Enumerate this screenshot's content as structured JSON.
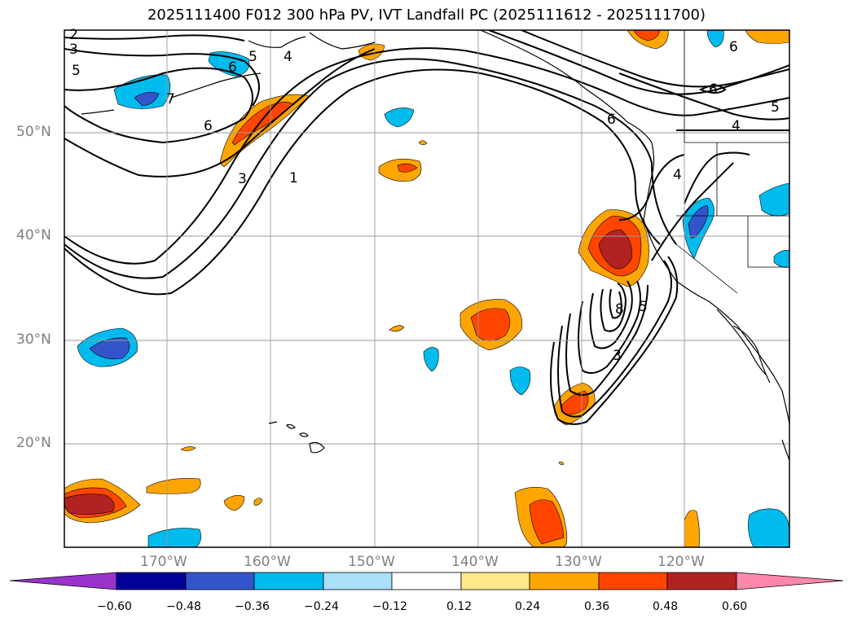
{
  "title": "2025111400 F012 300 hPa PV, IVT Landfall PC (2025111612 - 2025111700)",
  "latitude_labels": [
    "50°N",
    "40°N",
    "30°N",
    "20°N"
  ],
  "longitude_labels": [
    "170°W",
    "160°W",
    "150°W",
    "140°W",
    "130°W",
    "120°W"
  ],
  "contour_labels": [
    "2",
    "3",
    "5",
    "4",
    "5",
    "7",
    "6",
    "6",
    "3",
    "1",
    "6",
    "6",
    "5",
    "4",
    "4",
    "6",
    "8",
    "5",
    "3"
  ],
  "colorbar": {
    "tick_labels": [
      "−0.60",
      "−0.48",
      "−0.36",
      "−0.24",
      "−0.12",
      "0.12",
      "0.24",
      "0.36",
      "0.48",
      "0.60"
    ],
    "colors": [
      "#9933cc",
      "#000099",
      "#3355cc",
      "#00bbee",
      "#aae0f8",
      "#ffffff",
      "#ffe88a",
      "#ffa500",
      "#ff4500",
      "#b22222",
      "#ff88aa"
    ]
  }
}
